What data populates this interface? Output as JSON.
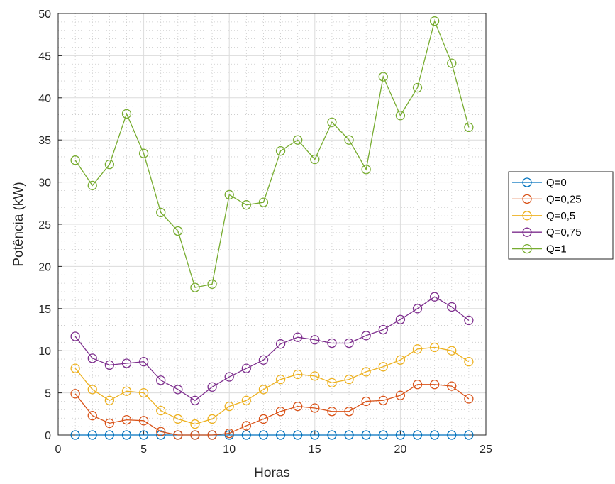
{
  "chart_data": {
    "type": "line",
    "xlabel": "Horas",
    "ylabel": "Potência (kW)",
    "xlim": [
      0,
      25
    ],
    "ylim": [
      0,
      50
    ],
    "xticks": [
      0,
      5,
      10,
      15,
      20,
      25
    ],
    "yticks": [
      0,
      5,
      10,
      15,
      20,
      25,
      30,
      35,
      40,
      45,
      50
    ],
    "grid": true,
    "minor_grid": true,
    "legend_position": "outside-right",
    "x": [
      1,
      2,
      3,
      4,
      5,
      6,
      7,
      8,
      9,
      10,
      11,
      12,
      13,
      14,
      15,
      16,
      17,
      18,
      19,
      20,
      21,
      22,
      23,
      24
    ],
    "series": [
      {
        "name": "Q=0",
        "color": "#0072BD",
        "values": [
          0,
          0,
          0,
          0,
          0,
          0,
          0,
          0,
          0,
          0,
          0,
          0,
          0,
          0,
          0,
          0,
          0,
          0,
          0,
          0,
          0,
          0,
          0,
          0
        ]
      },
      {
        "name": "Q=0,25",
        "color": "#D95319",
        "values": [
          4.9,
          2.3,
          1.4,
          1.8,
          1.7,
          0.4,
          0,
          0,
          0,
          0.2,
          1.1,
          1.9,
          2.8,
          3.4,
          3.2,
          2.8,
          2.8,
          4.0,
          4.1,
          4.7,
          6.0,
          6.0,
          5.8,
          4.3
        ]
      },
      {
        "name": "Q=0,5",
        "color": "#EDB120",
        "values": [
          7.9,
          5.4,
          4.1,
          5.2,
          5.0,
          2.9,
          1.9,
          1.3,
          1.9,
          3.4,
          4.1,
          5.4,
          6.6,
          7.2,
          7.0,
          6.2,
          6.6,
          7.5,
          8.1,
          8.9,
          10.2,
          10.4,
          10.0,
          8.7
        ]
      },
      {
        "name": "Q=0,75",
        "color": "#7E2F8E",
        "values": [
          11.7,
          9.1,
          8.3,
          8.5,
          8.7,
          6.5,
          5.4,
          4.1,
          5.7,
          6.9,
          7.9,
          8.9,
          10.8,
          11.6,
          11.3,
          10.9,
          10.9,
          11.8,
          12.5,
          13.7,
          15.0,
          16.4,
          15.2,
          13.6
        ]
      },
      {
        "name": "Q=1",
        "color": "#77AC30",
        "values": [
          32.6,
          29.6,
          32.1,
          38.1,
          33.4,
          26.4,
          24.2,
          17.5,
          17.9,
          28.5,
          27.3,
          27.6,
          33.7,
          35.0,
          32.7,
          37.1,
          35.0,
          31.5,
          42.5,
          37.9,
          41.2,
          49.1,
          44.1,
          36.5
        ]
      }
    ]
  }
}
